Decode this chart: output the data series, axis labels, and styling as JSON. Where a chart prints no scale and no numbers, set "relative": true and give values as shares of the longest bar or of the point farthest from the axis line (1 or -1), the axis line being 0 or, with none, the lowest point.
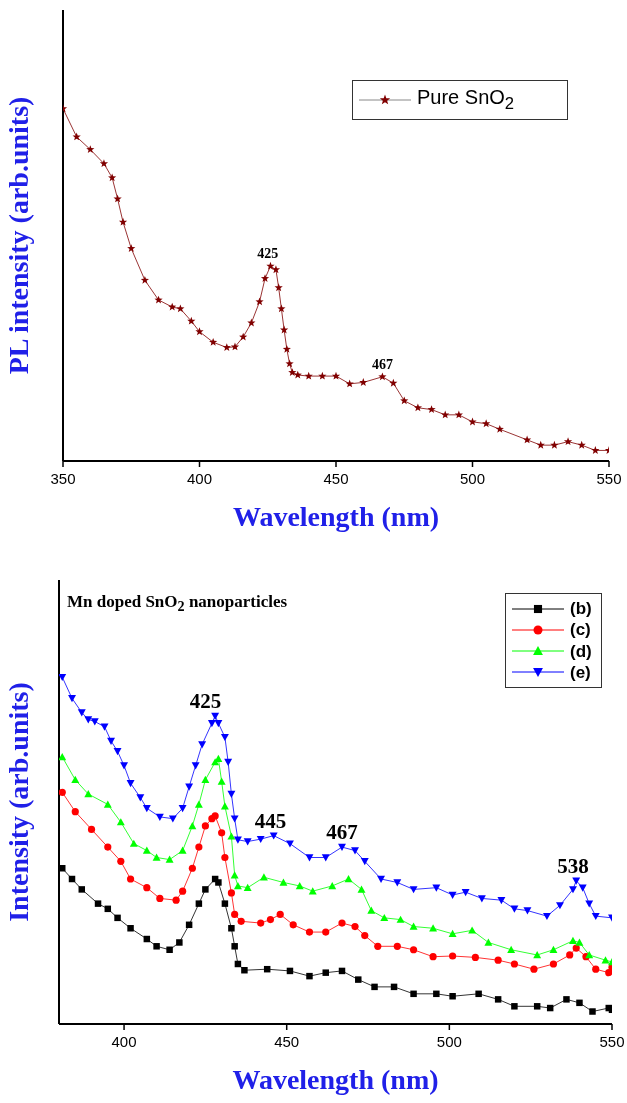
{
  "chart_data": [
    {
      "type": "line",
      "xlabel": "Wavelength (nm)",
      "ylabel": "PL intensity (arb.units)",
      "relative": true,
      "xlim": [
        350,
        550
      ],
      "xticks": [
        350,
        400,
        450,
        500,
        550
      ],
      "grid": false,
      "legend": "top right",
      "marker": "star",
      "annotations": [
        {
          "text": "425",
          "x": 425,
          "y": 0.553
        },
        {
          "text": "467",
          "x": 467,
          "y": 0.239
        }
      ],
      "x": [
        350,
        355,
        360,
        365,
        368,
        370,
        372,
        375,
        380,
        385,
        390,
        393,
        397,
        400,
        405,
        410,
        413,
        416,
        419,
        422,
        424,
        426,
        428,
        429,
        430,
        431,
        432,
        433,
        434,
        436,
        440,
        445,
        450,
        455,
        460,
        467,
        471,
        475,
        480,
        485,
        490,
        495,
        500,
        505,
        510,
        520,
        525,
        530,
        535,
        540,
        545,
        550
      ],
      "series": [
        {
          "name": "Pure SnO$_{2}$",
          "color": "#800000",
          "values": [
            1.0,
            0.92,
            0.884,
            0.844,
            0.804,
            0.744,
            0.678,
            0.603,
            0.513,
            0.457,
            0.437,
            0.432,
            0.397,
            0.367,
            0.337,
            0.322,
            0.324,
            0.352,
            0.392,
            0.452,
            0.518,
            0.553,
            0.543,
            0.492,
            0.432,
            0.372,
            0.317,
            0.276,
            0.251,
            0.244,
            0.241,
            0.241,
            0.241,
            0.219,
            0.223,
            0.239,
            0.221,
            0.171,
            0.151,
            0.146,
            0.131,
            0.131,
            0.111,
            0.106,
            0.09,
            0.06,
            0.045,
            0.045,
            0.055,
            0.045,
            0.03,
            0.03
          ]
        }
      ]
    },
    {
      "type": "line",
      "xlabel": "Wavelength (nm)",
      "ylabel": "Intensity (arb.units)",
      "relative": true,
      "xlim": [
        380,
        550
      ],
      "xticks": [
        400,
        450,
        500,
        550
      ],
      "grid": false,
      "legend": "top right",
      "annotations": [
        "Mn doped SnO$_{2}$ nanoparticles",
        {
          "text": "425",
          "x": 425,
          "y": 0.888
        },
        {
          "text": "445",
          "x": 445,
          "y": 0.543
        },
        {
          "text": "467",
          "x": 467,
          "y": 0.51
        },
        {
          "text": "538",
          "x": 538,
          "y": 0.413
        }
      ],
      "series": [
        {
          "name": "(b)",
          "color": "#000000",
          "marker": "square",
          "x": [
            381,
            384,
            387,
            392,
            395,
            398,
            402,
            407,
            410,
            414,
            417,
            420,
            423,
            425,
            428,
            429,
            431,
            433,
            434,
            435,
            437,
            444,
            451,
            457,
            462,
            467,
            472,
            477,
            483,
            489,
            496,
            501,
            509,
            515,
            520,
            527,
            531,
            536,
            540,
            544,
            549,
            550
          ],
          "values": [
            0.449,
            0.418,
            0.388,
            0.347,
            0.332,
            0.306,
            0.276,
            0.245,
            0.224,
            0.214,
            0.235,
            0.286,
            0.347,
            0.388,
            0.418,
            0.408,
            0.347,
            0.276,
            0.224,
            0.173,
            0.155,
            0.158,
            0.153,
            0.138,
            0.148,
            0.153,
            0.128,
            0.107,
            0.107,
            0.087,
            0.087,
            0.08,
            0.087,
            0.071,
            0.051,
            0.051,
            0.046,
            0.071,
            0.061,
            0.036,
            0.046,
            0.041
          ]
        },
        {
          "name": "(c)",
          "color": "#ff0000",
          "marker": "circle",
          "x": [
            381,
            385,
            390,
            395,
            399,
            402,
            407,
            411,
            416,
            418,
            421,
            423,
            425,
            427,
            428,
            430,
            431,
            433,
            434,
            436,
            442,
            445,
            448,
            452,
            457,
            462,
            467,
            471,
            474,
            478,
            484,
            489,
            495,
            501,
            508,
            515,
            520,
            526,
            532,
            537,
            539,
            542,
            545,
            549,
            550
          ],
          "values": [
            0.668,
            0.612,
            0.561,
            0.51,
            0.469,
            0.418,
            0.393,
            0.362,
            0.357,
            0.383,
            0.449,
            0.51,
            0.571,
            0.592,
            0.6,
            0.551,
            0.48,
            0.378,
            0.316,
            0.296,
            0.291,
            0.301,
            0.316,
            0.286,
            0.265,
            0.265,
            0.291,
            0.281,
            0.255,
            0.224,
            0.224,
            0.214,
            0.194,
            0.196,
            0.192,
            0.184,
            0.173,
            0.158,
            0.173,
            0.199,
            0.219,
            0.194,
            0.158,
            0.148,
            0.163
          ]
        },
        {
          "name": "(d)",
          "color": "#00ff00",
          "marker": "triangle",
          "x": [
            381,
            385,
            389,
            395,
            399,
            403,
            407,
            410,
            414,
            418,
            421,
            423,
            425,
            428,
            429,
            430,
            431,
            433,
            434,
            435,
            438,
            443,
            449,
            454,
            458,
            464,
            469,
            473,
            476,
            480,
            485,
            489,
            495,
            501,
            507,
            512,
            519,
            527,
            532,
            538,
            540,
            543,
            548,
            550
          ],
          "values": [
            0.77,
            0.704,
            0.663,
            0.633,
            0.582,
            0.52,
            0.5,
            0.48,
            0.474,
            0.5,
            0.571,
            0.633,
            0.704,
            0.755,
            0.765,
            0.699,
            0.628,
            0.541,
            0.429,
            0.398,
            0.393,
            0.423,
            0.408,
            0.398,
            0.383,
            0.398,
            0.418,
            0.388,
            0.327,
            0.306,
            0.301,
            0.281,
            0.276,
            0.26,
            0.27,
            0.235,
            0.214,
            0.199,
            0.214,
            0.24,
            0.235,
            0.199,
            0.184,
            0.179
          ]
        },
        {
          "name": "(e)",
          "color": "#0000ff",
          "marker": "triangle-down",
          "x": [
            381,
            384,
            387,
            389,
            391,
            394,
            396,
            398,
            400,
            402,
            405,
            407,
            411,
            415,
            418,
            420,
            422,
            424,
            427,
            428,
            429,
            431,
            432,
            433,
            434,
            435,
            438,
            442,
            446,
            451,
            457,
            462,
            467,
            471,
            474,
            479,
            484,
            489,
            496,
            501,
            505,
            510,
            516,
            520,
            524,
            530,
            534,
            538,
            539,
            541,
            543,
            545,
            550
          ],
          "values": [
            1.0,
            0.939,
            0.898,
            0.878,
            0.872,
            0.857,
            0.816,
            0.786,
            0.745,
            0.694,
            0.653,
            0.622,
            0.597,
            0.592,
            0.622,
            0.684,
            0.745,
            0.806,
            0.867,
            0.888,
            0.867,
            0.827,
            0.755,
            0.663,
            0.592,
            0.531,
            0.526,
            0.533,
            0.543,
            0.52,
            0.48,
            0.48,
            0.51,
            0.5,
            0.469,
            0.418,
            0.408,
            0.388,
            0.393,
            0.372,
            0.38,
            0.362,
            0.357,
            0.332,
            0.327,
            0.311,
            0.342,
            0.388,
            0.413,
            0.393,
            0.347,
            0.311,
            0.306
          ]
        }
      ]
    }
  ]
}
